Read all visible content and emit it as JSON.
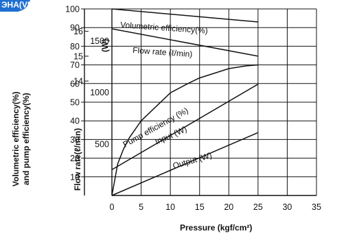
{
  "header_badge": {
    "text": "ЭНА(VB)",
    "color": "#1f6fd0"
  },
  "chart_data": {
    "type": "line",
    "x_label": "Pressure (kgf/cm²)",
    "x_ticks": [
      0,
      5,
      10,
      15,
      20,
      25,
      30,
      35
    ],
    "xlim": [
      0,
      35
    ],
    "axes": {
      "efficiency": {
        "label_line1": "Volumetric efficiency(%)",
        "label_line2": "and pump efficiency(%)",
        "ticks": [
          10,
          20,
          30,
          40,
          50,
          60,
          70,
          80,
          90,
          100
        ],
        "ylim": [
          0,
          100
        ]
      },
      "flow_rate": {
        "label": "Flow rate(ℓ/min)",
        "ticks": [
          14,
          15,
          16
        ],
        "ylim": [
          9.4,
          16.9
        ]
      },
      "power": {
        "label": "(W)",
        "ticks": [
          500,
          1000,
          1500
        ],
        "ylim": [
          0,
          1810
        ]
      }
    },
    "grid": true,
    "series": [
      {
        "name": "Volumetric efficiency(%)",
        "axis": "efficiency",
        "x": [
          0,
          25
        ],
        "y": [
          100,
          93
        ]
      },
      {
        "name": "Flow rate (ℓ/min)",
        "axis": "flow_rate",
        "x": [
          0,
          25
        ],
        "y": [
          16.1,
          15.0
        ]
      },
      {
        "name": "Pump efficiency (%)",
        "axis": "efficiency",
        "x": [
          0,
          1,
          2,
          3,
          5,
          8,
          10,
          13,
          15,
          18,
          20,
          23,
          25
        ],
        "y": [
          0,
          17,
          25,
          31,
          40,
          49,
          55,
          60,
          63,
          66,
          68,
          69.5,
          70
        ]
      },
      {
        "name": "Input (W)",
        "axis": "power",
        "x": [
          0,
          25
        ],
        "y": [
          250,
          1080
        ]
      },
      {
        "name": "Output (W)",
        "axis": "power",
        "x": [
          0,
          25
        ],
        "y": [
          0,
          610
        ]
      }
    ]
  }
}
